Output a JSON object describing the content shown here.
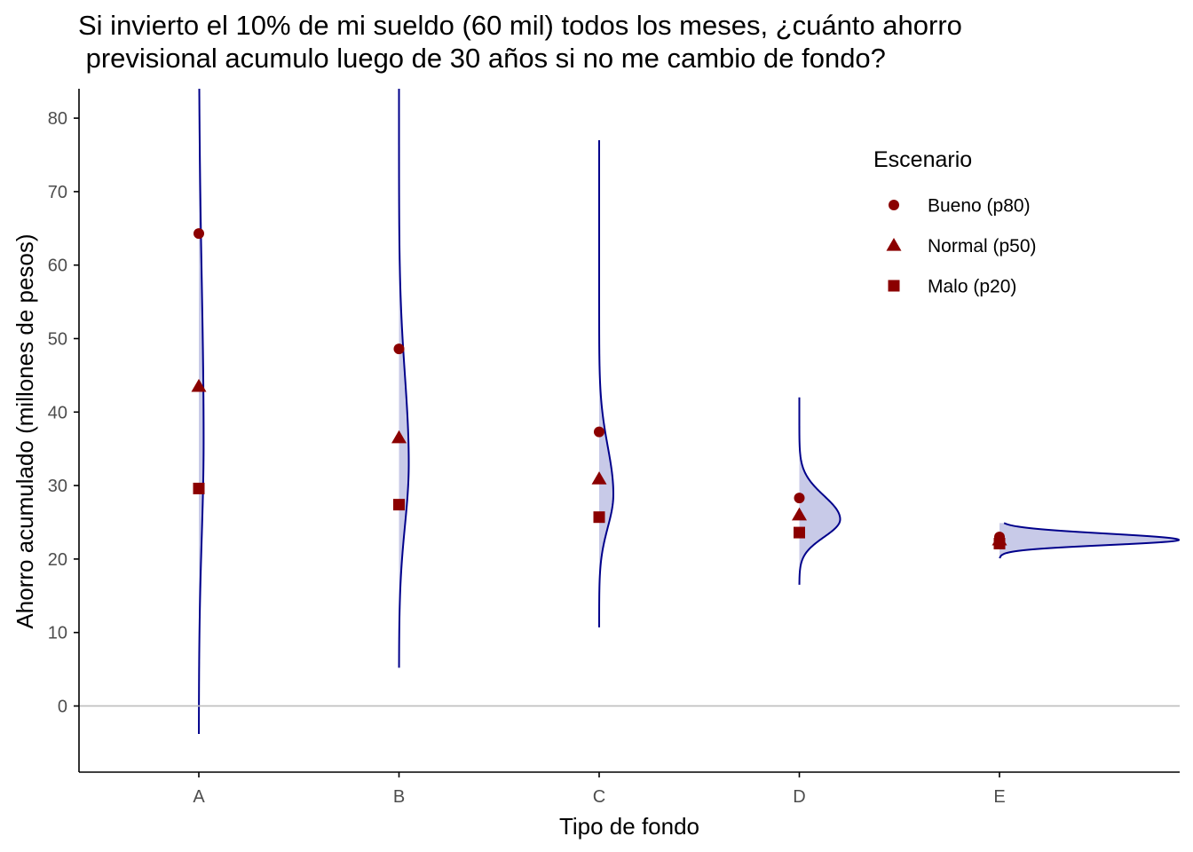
{
  "chart_data": {
    "type": "violin",
    "title_lines": [
      "Si invierto el 10% de mi sueldo (60 mil) todos los meses, ¿cuánto ahorro",
      " previsional acumulo luego de 30 años si no me cambio de fondo?"
    ],
    "xlabel": "Tipo de fondo",
    "ylabel": "Ahorro acumulado (millones de pesos)",
    "categories": [
      "A",
      "B",
      "C",
      "D",
      "E"
    ],
    "ylim": [
      -9,
      84
    ],
    "yticks": [
      0,
      10,
      20,
      30,
      40,
      50,
      60,
      70,
      80
    ],
    "reference_line_y": 0,
    "grid": false,
    "legend": {
      "title": "Escenario",
      "position": "top-right",
      "entries": [
        {
          "label": "Bueno (p80)",
          "shape": "circle"
        },
        {
          "label": "Normal (p50)",
          "shape": "triangle"
        },
        {
          "label": "Malo (p20)",
          "shape": "square"
        }
      ]
    },
    "series": [
      {
        "label": "Bueno (p80)",
        "shape": "circle",
        "values": [
          64.3,
          48.6,
          37.3,
          28.3,
          23.0
        ]
      },
      {
        "label": "Normal (p50)",
        "shape": "triangle",
        "values": [
          43.5,
          36.5,
          30.9,
          26.0,
          22.6
        ]
      },
      {
        "label": "Malo (p20)",
        "shape": "square",
        "values": [
          29.6,
          27.4,
          25.7,
          23.6,
          22.1
        ]
      }
    ],
    "distributions": [
      {
        "category": "A",
        "ymin": -3.8,
        "ymax": 84,
        "mode": 36,
        "peak": 0.054,
        "sd_low": 13,
        "sd_high": 22
      },
      {
        "category": "B",
        "ymin": 5.2,
        "ymax": 84,
        "mode": 33,
        "peak": 0.11,
        "sd_low": 8.5,
        "sd_high": 12
      },
      {
        "category": "C",
        "ymin": 10.7,
        "ymax": 77,
        "mode": 28.8,
        "peak": 0.16,
        "sd_low": 4.5,
        "sd_high": 6.5
      },
      {
        "category": "D",
        "ymin": 16.5,
        "ymax": 42,
        "mode": 25.4,
        "peak": 0.46,
        "sd_low": 2.4,
        "sd_high": 3.2
      },
      {
        "category": "E",
        "ymin": 20.1,
        "ymax": 24.9,
        "mode": 22.6,
        "peak": 2.02,
        "sd_low": 0.7,
        "sd_high": 0.85
      }
    ],
    "colors": {
      "points": "#8b0000",
      "violin_line": "#00008b",
      "violin_fill": "#c8cae8",
      "zero_line": "#bebebe",
      "axis": "#000000",
      "tick_label": "#4d4d4d"
    }
  }
}
